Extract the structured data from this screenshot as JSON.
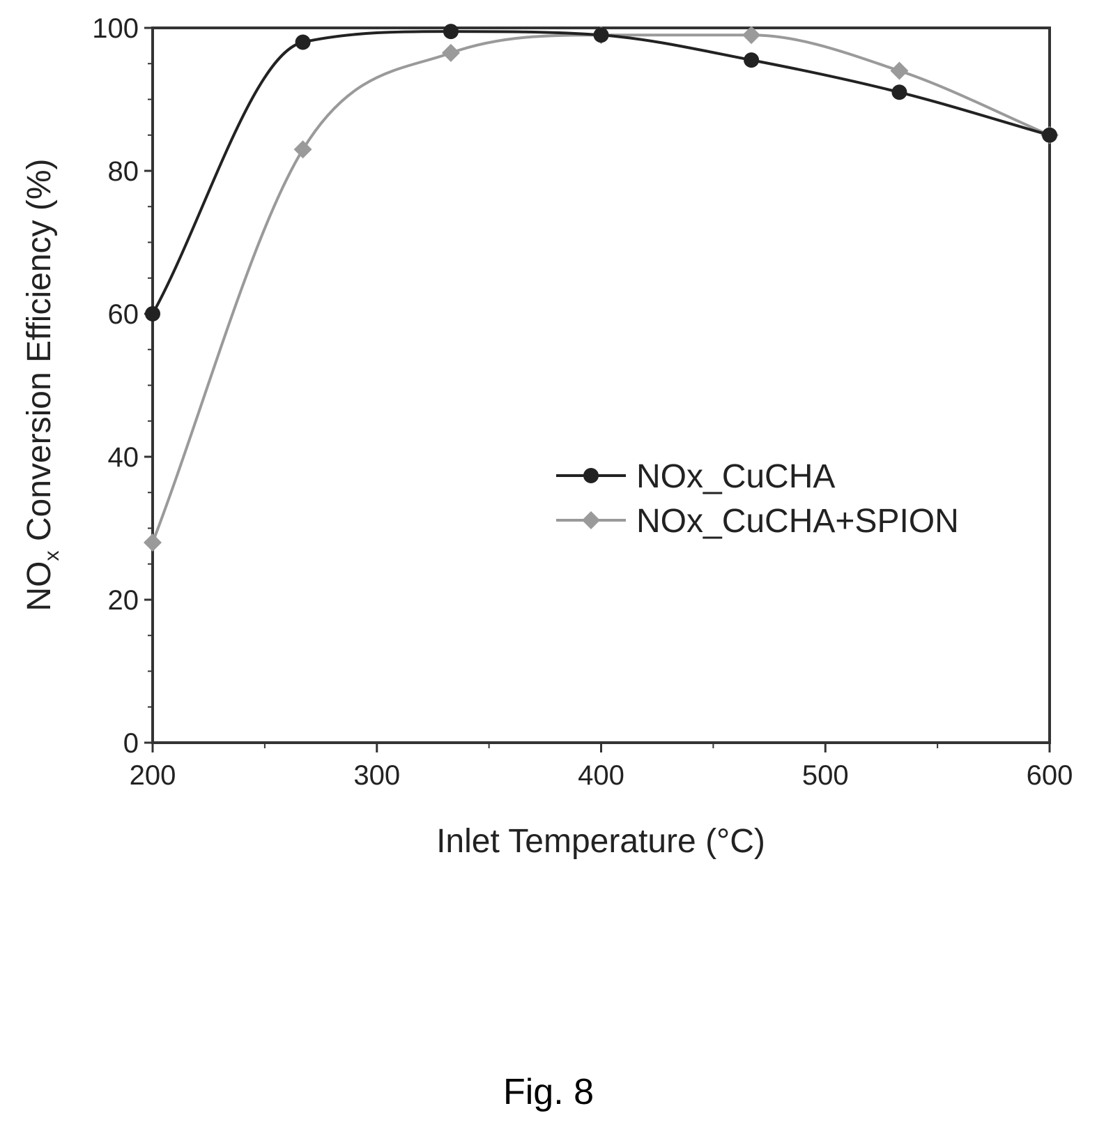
{
  "chart_data": {
    "type": "line",
    "title": "",
    "xlabel": "Inlet Temperature (°C)",
    "ylabel_main": "NO",
    "ylabel_sub": "x",
    "ylabel_rest": " Conversion Efficiency (%)",
    "xlim": [
      200,
      600
    ],
    "ylim": [
      0,
      100
    ],
    "xticks": [
      200,
      300,
      400,
      500,
      600
    ],
    "yticks": [
      0,
      20,
      40,
      60,
      80,
      100
    ],
    "xtick_labels": [
      "200",
      "300",
      "400",
      "500",
      "600"
    ],
    "ytick_labels": [
      "0",
      "20",
      "40",
      "60",
      "80",
      "100"
    ],
    "x_minor_step": 50,
    "y_minor_step": 5,
    "grid": false,
    "legend_position": "center-right",
    "series": [
      {
        "name": "NOx_CuCHA",
        "marker": "circle",
        "color": "#222222",
        "x": [
          200,
          267,
          333,
          400,
          467,
          533,
          600
        ],
        "y": [
          60,
          98,
          99.5,
          99,
          95.5,
          91,
          85
        ]
      },
      {
        "name": "NOx_CuCHA+SPION",
        "marker": "diamond",
        "color": "#9a9a9a",
        "x": [
          200,
          267,
          333,
          400,
          467,
          533,
          600
        ],
        "y": [
          28,
          83,
          96.5,
          99,
          99,
          94,
          85
        ]
      }
    ]
  },
  "caption": "Fig. 8"
}
